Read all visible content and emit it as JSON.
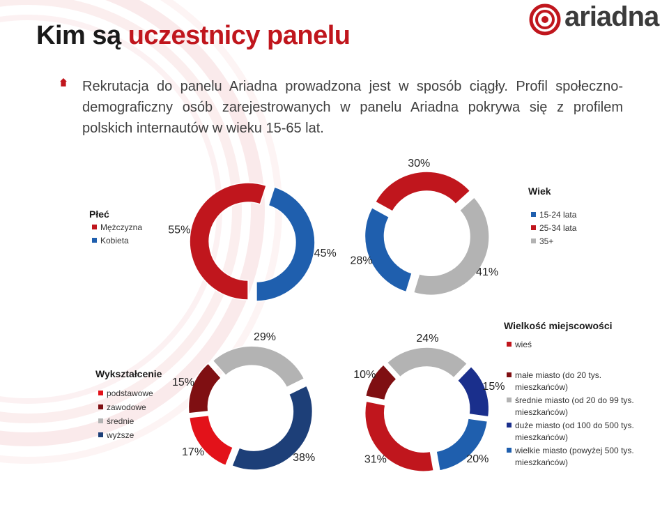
{
  "title": {
    "lead": "Kim są",
    "accent": "uczestnicy panelu"
  },
  "logo": {
    "text": "ariadna"
  },
  "intro": "Rekrutacja do panelu Ariadna prowadzona jest w sposób ciągły. Profil społeczno-demograficzny osób zarejestrowanych w panelu Ariadna pokrywa się z profilem polskich internautów w wieku 15-65 lat.",
  "colors": {
    "red": "#c0161d",
    "dark_red": "#7f0f12",
    "bright_red": "#e3121a",
    "blue": "#1f5fae",
    "navy": "#1a2f8c",
    "dark_blue": "#1d3f78",
    "gray": "#b3b3b3"
  },
  "chart_data": [
    {
      "type": "donut",
      "title": "Płeć",
      "legend_position": "left",
      "categories": [
        "Mężczyzna",
        "Kobieta"
      ],
      "values": [
        55,
        45
      ],
      "unit": "%",
      "colors": [
        "#c0161d",
        "#1f5fae"
      ]
    },
    {
      "type": "donut",
      "title": "Wiek",
      "legend_position": "right",
      "categories": [
        "15-24 lata",
        "25-34 lata",
        "35+"
      ],
      "values": [
        28,
        30,
        41
      ],
      "unit": "%",
      "colors": [
        "#1f5fae",
        "#c0161d",
        "#b3b3b3"
      ]
    },
    {
      "type": "donut",
      "title": "Wykształcenie",
      "legend_position": "left",
      "categories": [
        "podstawowe",
        "zawodowe",
        "średnie",
        "wyższe"
      ],
      "values": [
        17,
        15,
        29,
        38
      ],
      "unit": "%",
      "colors": [
        "#e3121a",
        "#7f0f12",
        "#b3b3b3",
        "#1d3f78"
      ]
    },
    {
      "type": "donut",
      "title": "Wielkość miejscowości",
      "legend_position": "right",
      "categories": [
        "wieś",
        "małe miasto (do 20 tys. mieszkańców)",
        "średnie miasto (od 20 do 99 tys. mieszkańców)",
        "duże miasto (od 100 do 500 tys. mieszkańców)",
        "wielkie miasto (powyżej 500 tys. mieszkańców)"
      ],
      "values": [
        31,
        10,
        24,
        15,
        20
      ],
      "unit": "%",
      "colors": [
        "#c0161d",
        "#7f0f12",
        "#b3b3b3",
        "#1a2f8c",
        "#1f5fae"
      ]
    }
  ]
}
